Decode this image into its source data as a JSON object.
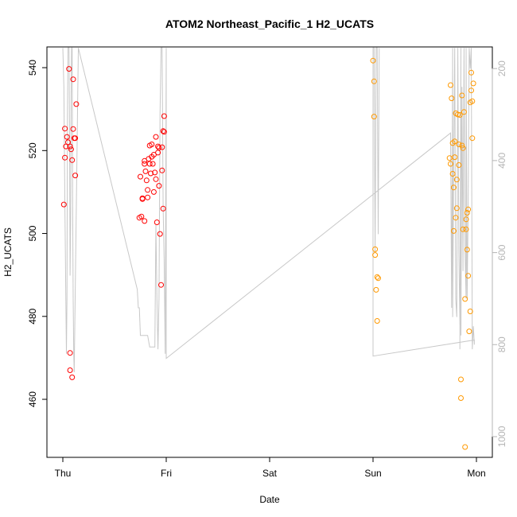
{
  "chart_data": {
    "type": "scatter",
    "title": "ATOM2 Northeast_Pacific_1 H2_UCATS",
    "xlabel": "Date",
    "ylabel": "H2_UCATS",
    "x_ticks": [
      "Thu",
      "Fri",
      "Sat",
      "Sun",
      "Mon"
    ],
    "x_tick_values": [
      0,
      1,
      2,
      3,
      4
    ],
    "ylim": [
      446,
      545
    ],
    "y_ticks": [
      460,
      480,
      500,
      520,
      540
    ],
    "right_axis": {
      "ylim": [
        1045,
        153
      ],
      "ticks": [
        200,
        400,
        600,
        800,
        1000
      ],
      "color": "#b5b5b5"
    },
    "grid": false,
    "colors": {
      "red": "#ff0000",
      "orange": "#ff9900",
      "gray_line": "#c8c8c8",
      "right_axis": "#b5b5b5"
    },
    "series": [
      {
        "marker": "open-circle",
        "color": "#ff0000",
        "points": [
          [
            0.01,
            507
          ],
          [
            0.02,
            518.3
          ],
          [
            0.02,
            525.3
          ],
          [
            0.03,
            521
          ],
          [
            0.04,
            523.3
          ],
          [
            0.05,
            522
          ],
          [
            0.06,
            539.7
          ],
          [
            0.07,
            521
          ],
          [
            0.07,
            471.2
          ],
          [
            0.07,
            467
          ],
          [
            0.08,
            520.3
          ],
          [
            0.09,
            517.7
          ],
          [
            0.09,
            465.3
          ],
          [
            0.1,
            537.2
          ],
          [
            0.1,
            525.2
          ],
          [
            0.11,
            523
          ],
          [
            0.12,
            523
          ],
          [
            0.12,
            514
          ],
          [
            0.13,
            531.2
          ],
          [
            0.74,
            503.8
          ],
          [
            0.75,
            513.7
          ],
          [
            0.76,
            504.1
          ],
          [
            0.77,
            508.3
          ],
          [
            0.77,
            508.5
          ],
          [
            0.79,
            517.5
          ],
          [
            0.79,
            516.8
          ],
          [
            0.79,
            503
          ],
          [
            0.8,
            515
          ],
          [
            0.81,
            512.8
          ],
          [
            0.82,
            510.5
          ],
          [
            0.82,
            508.7
          ],
          [
            0.83,
            518
          ],
          [
            0.84,
            521.2
          ],
          [
            0.84,
            516.8
          ],
          [
            0.85,
            514.5
          ],
          [
            0.86,
            521.5
          ],
          [
            0.86,
            518.5
          ],
          [
            0.87,
            516.8
          ],
          [
            0.88,
            519
          ],
          [
            0.88,
            510
          ],
          [
            0.89,
            514.7
          ],
          [
            0.9,
            523.3
          ],
          [
            0.9,
            513.1
          ],
          [
            0.91,
            502.7
          ],
          [
            0.92,
            521
          ],
          [
            0.92,
            519.5
          ],
          [
            0.93,
            520.7
          ],
          [
            0.93,
            511.5
          ],
          [
            0.94,
            499.9
          ],
          [
            0.95,
            487.6
          ],
          [
            0.96,
            515.2
          ],
          [
            0.96,
            520.8
          ],
          [
            0.97,
            524.7
          ],
          [
            0.97,
            506
          ],
          [
            0.98,
            524.5
          ],
          [
            0.98,
            528.3
          ]
        ]
      },
      {
        "marker": "open-circle",
        "color": "#ff9900",
        "points": [
          [
            3.0,
            541.7
          ],
          [
            3.01,
            528.2
          ],
          [
            3.01,
            536.7
          ],
          [
            3.02,
            494.8
          ],
          [
            3.02,
            496.2
          ],
          [
            3.03,
            486.4
          ],
          [
            3.04,
            489.5
          ],
          [
            3.04,
            478.9
          ],
          [
            3.05,
            489.2
          ],
          [
            3.74,
            518.2
          ],
          [
            3.75,
            535.8
          ],
          [
            3.75,
            516.8
          ],
          [
            3.76,
            532.6
          ],
          [
            3.77,
            521.8
          ],
          [
            3.77,
            514.4
          ],
          [
            3.78,
            511.1
          ],
          [
            3.78,
            500.6
          ],
          [
            3.79,
            522.2
          ],
          [
            3.79,
            518.4
          ],
          [
            3.8,
            529
          ],
          [
            3.8,
            503.8
          ],
          [
            3.81,
            513
          ],
          [
            3.81,
            506.1
          ],
          [
            3.82,
            528.7
          ],
          [
            3.83,
            521.5
          ],
          [
            3.83,
            516.5
          ],
          [
            3.84,
            528.6
          ],
          [
            3.85,
            464.8
          ],
          [
            3.85,
            460.3
          ],
          [
            3.86,
            533.3
          ],
          [
            3.86,
            521.2
          ],
          [
            3.87,
            501
          ],
          [
            3.87,
            520.6
          ],
          [
            3.88,
            529.3
          ],
          [
            3.89,
            484.2
          ],
          [
            3.89,
            448.5
          ],
          [
            3.9,
            501
          ],
          [
            3.9,
            503.4
          ],
          [
            3.91,
            496.1
          ],
          [
            3.91,
            505
          ],
          [
            3.92,
            489.8
          ],
          [
            3.92,
            505.8
          ],
          [
            3.93,
            476.4
          ],
          [
            3.94,
            481.2
          ],
          [
            3.94,
            531.6
          ],
          [
            3.95,
            534.5
          ],
          [
            3.95,
            538.8
          ],
          [
            3.96,
            531.9
          ],
          [
            3.96,
            523
          ],
          [
            3.97,
            536.2
          ]
        ]
      }
    ],
    "pressure_line": {
      "axis": "right",
      "color": "#c8c8c8",
      "points": [
        [
          0.0,
          155
        ],
        [
          0.01,
          240
        ],
        [
          0.02,
          500
        ],
        [
          0.03,
          720
        ],
        [
          0.035,
          820
        ],
        [
          0.04,
          700
        ],
        [
          0.045,
          300
        ],
        [
          0.05,
          155
        ],
        [
          0.06,
          155
        ],
        [
          0.065,
          360
        ],
        [
          0.07,
          650
        ],
        [
          0.075,
          540
        ],
        [
          0.08,
          260
        ],
        [
          0.085,
          155
        ],
        [
          0.09,
          155
        ],
        [
          0.095,
          480
        ],
        [
          0.1,
          700
        ],
        [
          0.105,
          820
        ],
        [
          0.11,
          860
        ],
        [
          0.15,
          155
        ],
        [
          0.72,
          680
        ],
        [
          0.73,
          720
        ],
        [
          0.74,
          720
        ],
        [
          0.75,
          780
        ],
        [
          0.78,
          780
        ],
        [
          0.82,
          780
        ],
        [
          0.84,
          805
        ],
        [
          0.88,
          805
        ],
        [
          0.89,
          805
        ],
        [
          0.9,
          540
        ],
        [
          0.91,
          700
        ],
        [
          0.92,
          810
        ],
        [
          0.93,
          700
        ],
        [
          0.94,
          300
        ],
        [
          0.95,
          155
        ],
        [
          0.96,
          155
        ],
        [
          0.97,
          500
        ],
        [
          0.98,
          620
        ],
        [
          0.99,
          820
        ],
        [
          1.0,
          155
        ],
        [
          1.0,
          620
        ],
        [
          1.0,
          830
        ],
        [
          1.0,
          830
        ],
        [
          3.75,
          340
        ],
        [
          3.76,
          720
        ],
        [
          3.77,
          155
        ],
        [
          3.77,
          740
        ],
        [
          3.78,
          420
        ],
        [
          3.79,
          155
        ],
        [
          3.8,
          700
        ],
        [
          3.81,
          740
        ],
        [
          3.82,
          155
        ],
        [
          3.83,
          600
        ],
        [
          3.84,
          760
        ],
        [
          3.84,
          810
        ],
        [
          3.85,
          155
        ],
        [
          3.85,
          780
        ],
        [
          3.86,
          240
        ],
        [
          3.87,
          640
        ],
        [
          3.88,
          155
        ],
        [
          3.89,
          600
        ],
        [
          3.9,
          700
        ],
        [
          3.9,
          155
        ],
        [
          3.91,
          700
        ],
        [
          3.92,
          500
        ],
        [
          3.93,
          155
        ],
        [
          3.94,
          200
        ],
        [
          3.95,
          155
        ],
        [
          3.96,
          810
        ],
        [
          3.97,
          760
        ],
        [
          3.98,
          800
        ],
        [
          3.98,
          790
        ],
        [
          3.0,
          825
        ],
        [
          3.0,
          650
        ],
        [
          3.0,
          155
        ],
        [
          3.01,
          155
        ],
        [
          3.02,
          600
        ],
        [
          3.03,
          155
        ],
        [
          3.04,
          155
        ],
        [
          3.05,
          560
        ],
        [
          3.06,
          155
        ]
      ]
    }
  }
}
